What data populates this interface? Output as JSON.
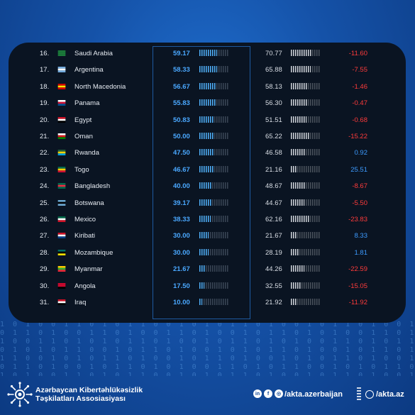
{
  "rows": [
    {
      "rank": "16.",
      "country": "Saudi Arabia",
      "score": "59.17",
      "score_value": 59.17,
      "prev": "70.77",
      "prev_value": 70.77,
      "diff": "-11.60",
      "trend": "neg",
      "flag": [
        "#1b7a3a",
        "#1b7a3a",
        "#1b7a3a"
      ]
    },
    {
      "rank": "17.",
      "country": "Argentina",
      "score": "58.33",
      "score_value": 58.33,
      "prev": "65.88",
      "prev_value": 65.88,
      "diff": "-7.55",
      "trend": "neg",
      "flag": [
        "#74acdf",
        "#ffffff",
        "#74acdf"
      ]
    },
    {
      "rank": "18.",
      "country": "North Macedonia",
      "score": "56.67",
      "score_value": 56.67,
      "prev": "58.13",
      "prev_value": 58.13,
      "diff": "-1.46",
      "trend": "neg",
      "flag": [
        "#d20000",
        "#ffe600",
        "#d20000"
      ]
    },
    {
      "rank": "19.",
      "country": "Panama",
      "score": "55.83",
      "score_value": 55.83,
      "prev": "56.30",
      "prev_value": 56.3,
      "diff": "-0.47",
      "trend": "neg",
      "flag": [
        "#ffffff",
        "#d21034",
        "#005293"
      ]
    },
    {
      "rank": "20.",
      "country": "Egypt",
      "score": "50.83",
      "score_value": 50.83,
      "prev": "51.51",
      "prev_value": 51.51,
      "diff": "-0.68",
      "trend": "neg",
      "flag": [
        "#ce1126",
        "#ffffff",
        "#000000"
      ]
    },
    {
      "rank": "21.",
      "country": "Oman",
      "score": "50.00",
      "score_value": 50.0,
      "prev": "65.22",
      "prev_value": 65.22,
      "diff": "-15.22",
      "trend": "neg",
      "flag": [
        "#ffffff",
        "#db161b",
        "#008000"
      ]
    },
    {
      "rank": "22.",
      "country": "Rwanda",
      "score": "47.50",
      "score_value": 47.5,
      "prev": "46.58",
      "prev_value": 46.58,
      "diff": "0.92",
      "trend": "pos",
      "flag": [
        "#20603d",
        "#fad201",
        "#00a1de"
      ]
    },
    {
      "rank": "23.",
      "country": "Togo",
      "score": "46.67",
      "score_value": 46.67,
      "prev": "21.16",
      "prev_value": 21.16,
      "diff": "25.51",
      "trend": "pos",
      "flag": [
        "#006a4e",
        "#ffce00",
        "#d21034"
      ]
    },
    {
      "rank": "24.",
      "country": "Bangladesh",
      "score": "40.00",
      "score_value": 40.0,
      "prev": "48.67",
      "prev_value": 48.67,
      "diff": "-8.67",
      "trend": "neg",
      "flag": [
        "#006a4e",
        "#f42a41",
        "#006a4e"
      ]
    },
    {
      "rank": "25.",
      "country": "Botswana",
      "score": "39.17",
      "score_value": 39.17,
      "prev": "44.67",
      "prev_value": 44.67,
      "diff": "-5.50",
      "trend": "neg",
      "flag": [
        "#6da9d2",
        "#000000",
        "#6da9d2"
      ]
    },
    {
      "rank": "26.",
      "country": "Mexico",
      "score": "38.33",
      "score_value": 38.33,
      "prev": "62.16",
      "prev_value": 62.16,
      "diff": "-23.83",
      "trend": "neg",
      "flag": [
        "#006847",
        "#ffffff",
        "#ce1126"
      ]
    },
    {
      "rank": "27.",
      "country": "Kiribati",
      "score": "30.00",
      "score_value": 30.0,
      "prev": "21.67",
      "prev_value": 21.67,
      "diff": "8.33",
      "trend": "pos",
      "flag": [
        "#ce1126",
        "#ffffff",
        "#003f87"
      ]
    },
    {
      "rank": "28.",
      "country": "Mozambique",
      "score": "30.00",
      "score_value": 30.0,
      "prev": "28.19",
      "prev_value": 28.19,
      "diff": "1.81",
      "trend": "pos",
      "flag": [
        "#007168",
        "#000000",
        "#fce100"
      ]
    },
    {
      "rank": "29.",
      "country": "Myanmar",
      "score": "21.67",
      "score_value": 21.67,
      "prev": "44.26",
      "prev_value": 44.26,
      "diff": "-22.59",
      "trend": "neg",
      "flag": [
        "#fecb00",
        "#34b233",
        "#ea2839"
      ]
    },
    {
      "rank": "30.",
      "country": "Angola",
      "score": "17.50",
      "score_value": 17.5,
      "prev": "32.55",
      "prev_value": 32.55,
      "diff": "-15.05",
      "trend": "neg",
      "flag": [
        "#cc092f",
        "#cc092f",
        "#000000"
      ]
    },
    {
      "rank": "31.",
      "country": "Iraq",
      "score": "10.00",
      "score_value": 10.0,
      "prev": "21.92",
      "prev_value": 21.92,
      "diff": "-11.92",
      "trend": "neg",
      "flag": [
        "#ce1126",
        "#ffffff",
        "#000000"
      ]
    }
  ],
  "footer": {
    "org_line1": "Azərbaycan Kibertəhlükəsizlik",
    "org_line2": "Təşkilatları Assosiasiyası",
    "social_handle": "/akta.azerbaijan",
    "social_icons": [
      "linkedin-icon",
      "facebook-icon",
      "instagram-icon"
    ],
    "website": "/akta.az"
  },
  "colors": {
    "negative": "#ff3b3b",
    "positive": "#3d9bff",
    "score": "#4aa8ff"
  }
}
